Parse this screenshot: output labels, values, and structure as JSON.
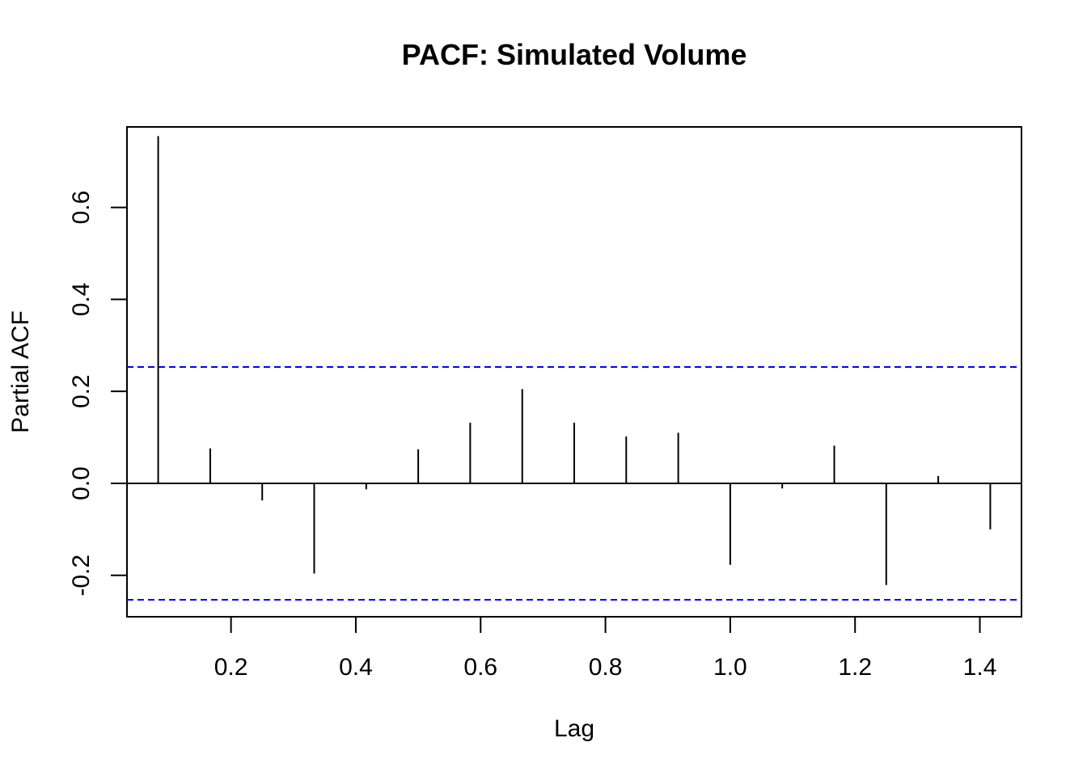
{
  "chart_data": {
    "type": "bar",
    "title": "PACF: Simulated Volume",
    "xlabel": "Lag",
    "ylabel": "Partial ACF",
    "xlim": [
      0.0333,
      1.4667
    ],
    "ylim": [
      -0.29,
      0.775
    ],
    "xticks": [
      0.2,
      0.4,
      0.6,
      0.8,
      1.0,
      1.2,
      1.4
    ],
    "xtick_labels": [
      "0.2",
      "0.4",
      "0.6",
      "0.8",
      "1.0",
      "1.2",
      "1.4"
    ],
    "yticks": [
      -0.2,
      0.0,
      0.2,
      0.4,
      0.6
    ],
    "ytick_labels": [
      "-0.2",
      "0.0",
      "0.2",
      "0.4",
      "0.6"
    ],
    "confidence_bound": 0.253,
    "zero_line": 0,
    "grid": false,
    "colors": {
      "spikes": "#000000",
      "bounds": "#0000ff",
      "axes": "#000000"
    },
    "x": [
      0.0833,
      0.1667,
      0.25,
      0.3333,
      0.4167,
      0.5,
      0.5833,
      0.6667,
      0.75,
      0.8333,
      0.9167,
      1.0,
      1.0833,
      1.1667,
      1.25,
      1.3333,
      1.4167
    ],
    "values": [
      0.755,
      0.076,
      -0.037,
      -0.196,
      -0.013,
      0.074,
      0.132,
      0.205,
      0.132,
      0.102,
      0.11,
      -0.177,
      -0.011,
      0.082,
      -0.221,
      0.016,
      -0.1
    ]
  }
}
